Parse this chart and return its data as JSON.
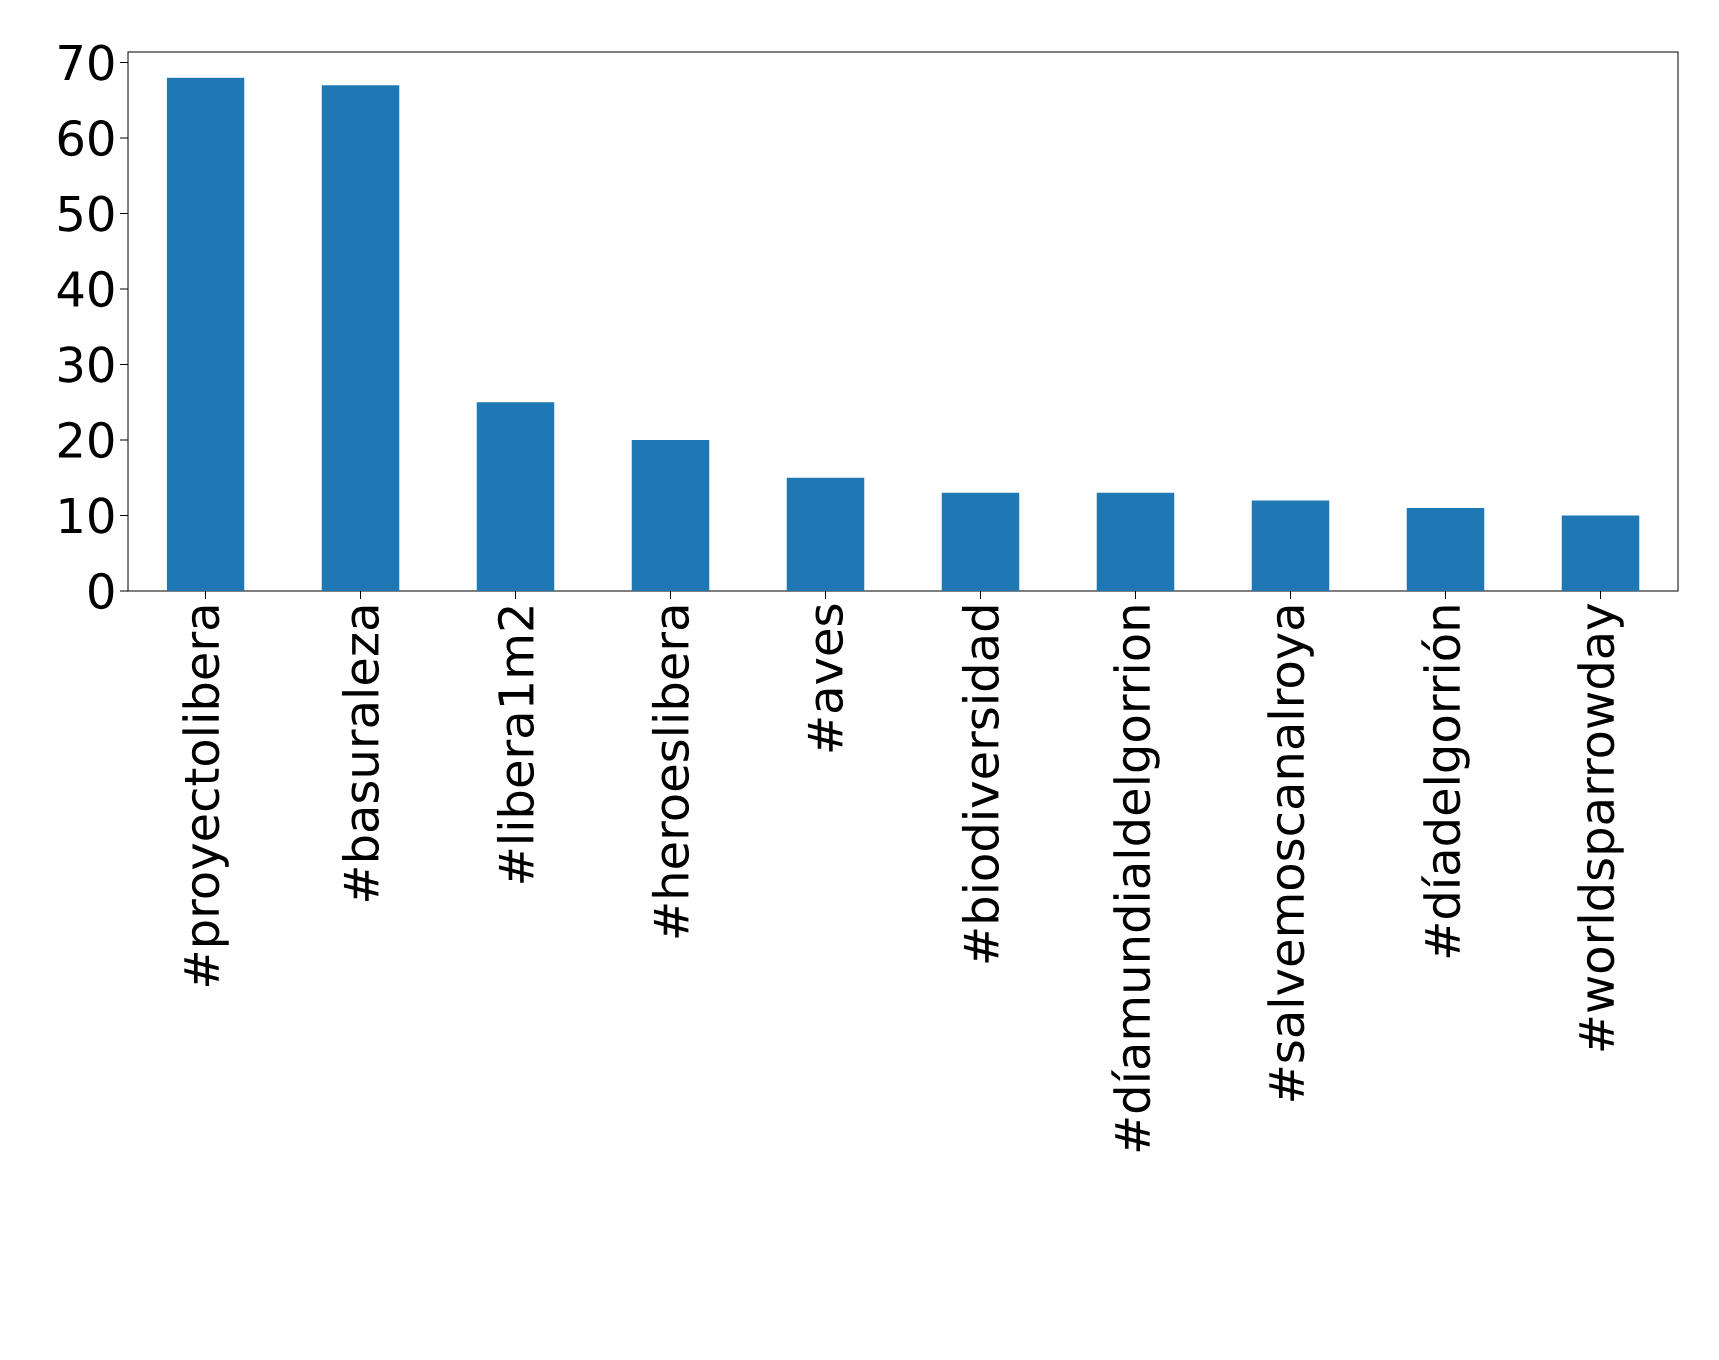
{
  "chart_data": {
    "type": "bar",
    "categories": [
      "#proyectolibera",
      "#basuraleza",
      "#libera1m2",
      "#heroeslibera",
      "#aves",
      "#biodiversidad",
      "#díamundialdelgorrion",
      "#salvemoscanalroya",
      "#díadelgorrión",
      "#worldsparrowday"
    ],
    "values": [
      68,
      67,
      25,
      20,
      15,
      13,
      13,
      12,
      11,
      10
    ],
    "color": "#1f77b4",
    "ylim": [
      0,
      71.4
    ],
    "yticks": [
      0,
      10,
      20,
      30,
      40,
      50,
      60,
      70
    ],
    "grid": false
  }
}
